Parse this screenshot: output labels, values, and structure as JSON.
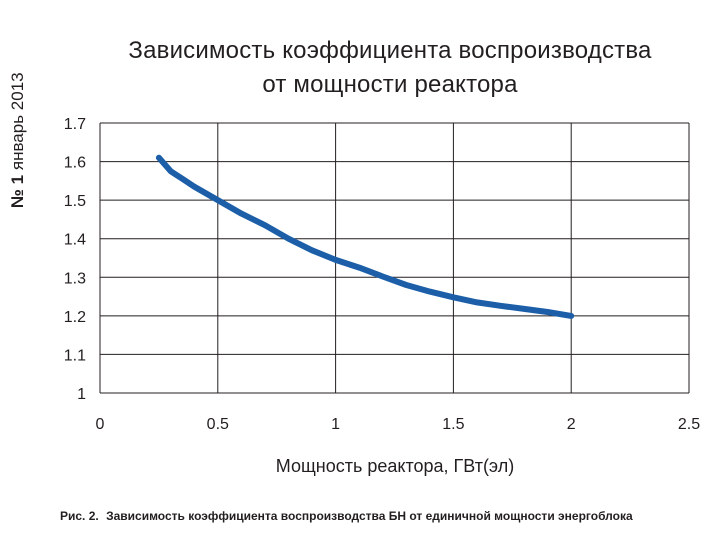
{
  "side_label": {
    "number": "№ 1",
    "date": "январь 2013"
  },
  "chart_data": {
    "type": "line",
    "title_line1": "Зависимость коэффициента воспроизводства",
    "title_line2": "от мощности реактора",
    "xlabel": "Мощность реактора, ГВт(эл)",
    "ylabel": "",
    "xlim": [
      0,
      2.5
    ],
    "ylim": [
      1,
      1.7
    ],
    "x_ticks": [
      "0",
      "0.5",
      "1",
      "1.5",
      "2",
      "2.5"
    ],
    "y_ticks": [
      "1",
      "1.1",
      "1.2",
      "1.3",
      "1.4",
      "1.5",
      "1.6",
      "1.7"
    ],
    "grid": true,
    "line_color": "#1c5fa8",
    "series": [
      {
        "x": [
          0.25,
          0.3,
          0.35,
          0.4,
          0.5,
          0.6,
          0.7,
          0.8,
          0.9,
          1.0,
          1.1,
          1.2,
          1.3,
          1.4,
          1.5,
          1.6,
          1.7,
          1.8,
          1.9,
          2.0
        ],
        "y": [
          1.61,
          1.575,
          1.555,
          1.535,
          1.5,
          1.465,
          1.435,
          1.4,
          1.37,
          1.345,
          1.325,
          1.302,
          1.28,
          1.263,
          1.248,
          1.235,
          1.226,
          1.218,
          1.21,
          1.2
        ]
      }
    ]
  },
  "caption": {
    "figure": "Рис. 2.",
    "text": "Зависимость коэффициента воспроизводства БН от единичной мощности энергоблока"
  }
}
